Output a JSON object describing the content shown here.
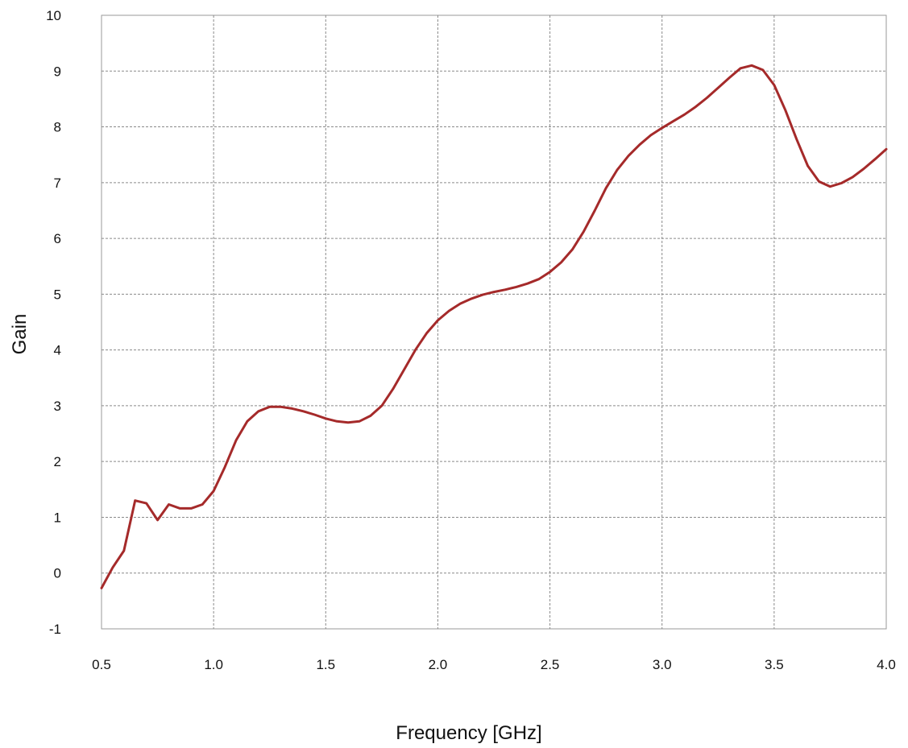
{
  "chart_data": {
    "type": "line",
    "title": "",
    "xlabel": "Frequency [GHz]",
    "ylabel": "Gain",
    "xlim": [
      0.5,
      4.0
    ],
    "ylim": [
      -1,
      10
    ],
    "x_ticks": [
      "0.5",
      "1.0",
      "1.5",
      "2.0",
      "2.5",
      "3.0",
      "3.5",
      "4.0"
    ],
    "y_ticks": [
      "-1",
      "0",
      "1",
      "2",
      "3",
      "4",
      "5",
      "6",
      "7",
      "8",
      "9",
      "10"
    ],
    "grid": true,
    "legend": "none",
    "line_color": "#a52a2a",
    "series": [
      {
        "x": [
          0.5,
          0.55,
          0.6,
          0.65,
          0.7,
          0.75,
          0.8,
          0.85,
          0.9,
          0.95,
          1.0,
          1.05,
          1.1,
          1.15,
          1.2,
          1.25,
          1.3,
          1.35,
          1.4,
          1.45,
          1.5,
          1.55,
          1.6,
          1.65,
          1.7,
          1.75,
          1.8,
          1.85,
          1.9,
          1.95,
          2.0,
          2.05,
          2.1,
          2.15,
          2.2,
          2.25,
          2.3,
          2.35,
          2.4,
          2.45,
          2.5,
          2.55,
          2.6,
          2.65,
          2.7,
          2.75,
          2.8,
          2.85,
          2.9,
          2.95,
          3.0,
          3.05,
          3.1,
          3.15,
          3.2,
          3.25,
          3.3,
          3.35,
          3.4,
          3.45,
          3.5,
          3.55,
          3.6,
          3.65,
          3.7,
          3.75,
          3.8,
          3.85,
          3.9,
          3.95,
          4.0
        ],
        "values": [
          -0.27,
          0.1,
          0.4,
          1.3,
          1.25,
          0.95,
          1.23,
          1.16,
          1.16,
          1.23,
          1.47,
          1.9,
          2.38,
          2.72,
          2.9,
          2.98,
          2.98,
          2.95,
          2.9,
          2.84,
          2.77,
          2.72,
          2.7,
          2.72,
          2.82,
          3.0,
          3.3,
          3.65,
          4.0,
          4.3,
          4.53,
          4.7,
          4.83,
          4.92,
          4.99,
          5.04,
          5.08,
          5.13,
          5.19,
          5.27,
          5.4,
          5.57,
          5.8,
          6.12,
          6.5,
          6.9,
          7.23,
          7.48,
          7.68,
          7.85,
          7.98,
          8.1,
          8.22,
          8.36,
          8.52,
          8.7,
          8.88,
          9.05,
          9.1,
          9.02,
          8.75,
          8.3,
          7.78,
          7.3,
          7.02,
          6.93,
          6.99,
          7.1,
          7.25,
          7.42,
          7.6
        ]
      }
    ]
  }
}
